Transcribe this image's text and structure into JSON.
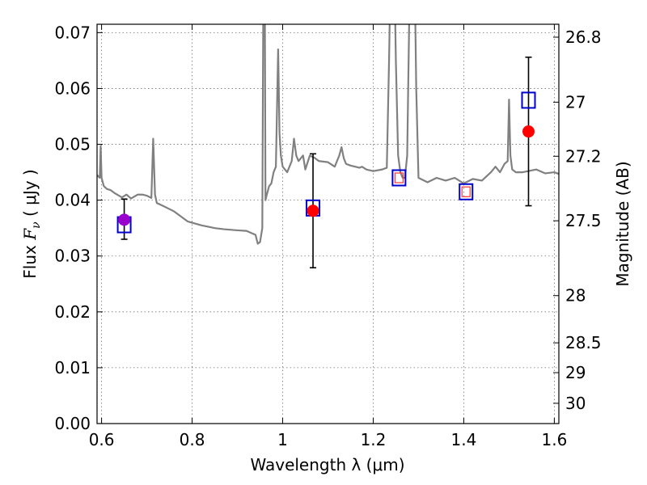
{
  "chart_data": {
    "type": "scatter",
    "title": "",
    "xlabel": "Wavelength  λ (μm)",
    "ylabel": "Flux  F_ν  ( μJy )",
    "ylabel_parts": {
      "prefix": "Flux  ",
      "symbol": "F",
      "subscript": "ν",
      "suffix": "  ( μJy )"
    },
    "y2label": "Magnitude (AB)",
    "xlim": [
      0.59,
      1.61
    ],
    "ylim": [
      0.0,
      0.0715
    ],
    "grid": true,
    "x_ticks": [
      {
        "value": 0.6,
        "label": "0.6"
      },
      {
        "value": 0.8,
        "label": "0.8"
      },
      {
        "value": 1.0,
        "label": "1"
      },
      {
        "value": 1.2,
        "label": "1.2"
      },
      {
        "value": 1.4,
        "label": "1.4"
      },
      {
        "value": 1.6,
        "label": "1.6"
      }
    ],
    "y_ticks": [
      {
        "value": 0.0,
        "label": "0.00"
      },
      {
        "value": 0.01,
        "label": "0.01"
      },
      {
        "value": 0.02,
        "label": "0.02"
      },
      {
        "value": 0.03,
        "label": "0.03"
      },
      {
        "value": 0.04,
        "label": "0.04"
      },
      {
        "value": 0.05,
        "label": "0.05"
      },
      {
        "value": 0.06,
        "label": "0.06"
      },
      {
        "value": 0.07,
        "label": "0.07"
      }
    ],
    "y2_ticks": [
      {
        "mag": 26.8,
        "label": "26.8"
      },
      {
        "mag": 27.0,
        "label": "27"
      },
      {
        "mag": 27.2,
        "label": "27.2"
      },
      {
        "mag": 27.5,
        "label": "27.5"
      },
      {
        "mag": 28.0,
        "label": "28"
      },
      {
        "mag": 28.5,
        "label": "28.5"
      },
      {
        "mag": 29.0,
        "label": "29"
      },
      {
        "mag": 30.0,
        "label": "30"
      }
    ],
    "series": [
      {
        "name": "model_spectrum",
        "kind": "line",
        "color": "#808080",
        "x": [
          0.59,
          0.596,
          0.598,
          0.6,
          0.605,
          0.612,
          0.62,
          0.63,
          0.645,
          0.655,
          0.665,
          0.68,
          0.69,
          0.7,
          0.71,
          0.714,
          0.716,
          0.718,
          0.722,
          0.735,
          0.76,
          0.79,
          0.82,
          0.85,
          0.87,
          0.9,
          0.92,
          0.94,
          0.945,
          0.95,
          0.955,
          0.958,
          0.96,
          0.962,
          0.965,
          0.97,
          0.975,
          0.98,
          0.985,
          0.99,
          0.993,
          0.996,
          1.0,
          1.01,
          1.02,
          1.025,
          1.03,
          1.035,
          1.04,
          1.045,
          1.05,
          1.06,
          1.065,
          1.07,
          1.08,
          1.1,
          1.115,
          1.125,
          1.13,
          1.135,
          1.14,
          1.15,
          1.16,
          1.17,
          1.175,
          1.185,
          1.2,
          1.22,
          1.23,
          1.235,
          1.24,
          1.245,
          1.25,
          1.255,
          1.26,
          1.265,
          1.27,
          1.275,
          1.28,
          1.285,
          1.29,
          1.295,
          1.3,
          1.32,
          1.34,
          1.36,
          1.38,
          1.4,
          1.42,
          1.44,
          1.46,
          1.47,
          1.48,
          1.49,
          1.497,
          1.5,
          1.503,
          1.507,
          1.515,
          1.53,
          1.56,
          1.58,
          1.6,
          1.61
        ],
        "y": [
          0.0445,
          0.044,
          0.0497,
          0.044,
          0.0425,
          0.042,
          0.0418,
          0.0412,
          0.0405,
          0.041,
          0.0403,
          0.041,
          0.041,
          0.0408,
          0.0404,
          0.051,
          0.046,
          0.041,
          0.0395,
          0.039,
          0.038,
          0.0362,
          0.0355,
          0.035,
          0.0348,
          0.0346,
          0.0345,
          0.0338,
          0.0322,
          0.0325,
          0.035,
          0.09,
          0.09,
          0.04,
          0.041,
          0.0425,
          0.043,
          0.045,
          0.046,
          0.067,
          0.052,
          0.048,
          0.046,
          0.045,
          0.047,
          0.051,
          0.048,
          0.047,
          0.0475,
          0.048,
          0.0455,
          0.048,
          0.0478,
          0.0476,
          0.047,
          0.0468,
          0.046,
          0.048,
          0.0495,
          0.0475,
          0.0465,
          0.0462,
          0.046,
          0.0458,
          0.046,
          0.0455,
          0.0452,
          0.0455,
          0.0458,
          0.065,
          0.09,
          0.09,
          0.065,
          0.048,
          0.045,
          0.044,
          0.044,
          0.048,
          0.075,
          0.09,
          0.09,
          0.06,
          0.044,
          0.0432,
          0.044,
          0.0435,
          0.044,
          0.043,
          0.0438,
          0.0435,
          0.045,
          0.046,
          0.045,
          0.0465,
          0.047,
          0.058,
          0.048,
          0.0455,
          0.045,
          0.045,
          0.0455,
          0.0448,
          0.045,
          0.0447
        ]
      },
      {
        "name": "model_photometry",
        "kind": "open_square",
        "color": "#0000cc",
        "points": [
          {
            "x": 0.65,
            "y": 0.0356
          },
          {
            "x": 1.067,
            "y": 0.0386
          },
          {
            "x": 1.257,
            "y": 0.044
          },
          {
            "x": 1.405,
            "y": 0.0415
          },
          {
            "x": 1.543,
            "y": 0.0579
          }
        ]
      },
      {
        "name": "observed",
        "kind": "filled_circle",
        "color": "#ff0000",
        "points": [
          {
            "x": 0.65,
            "y": 0.0365,
            "err_low": 0.0035,
            "err_high": 0.0037,
            "color": "#9900cc"
          },
          {
            "x": 1.067,
            "y": 0.0381,
            "err_low": 0.0102,
            "err_high": 0.0102
          },
          {
            "x": 1.257,
            "y": 0.044,
            "err_low": 0.0,
            "err_high": 0.0,
            "small": true
          },
          {
            "x": 1.405,
            "y": 0.0415,
            "err_low": 0.0,
            "err_high": 0.0,
            "small": true
          },
          {
            "x": 1.543,
            "y": 0.0523,
            "err_low": 0.0133,
            "err_high": 0.0133
          }
        ]
      }
    ]
  }
}
